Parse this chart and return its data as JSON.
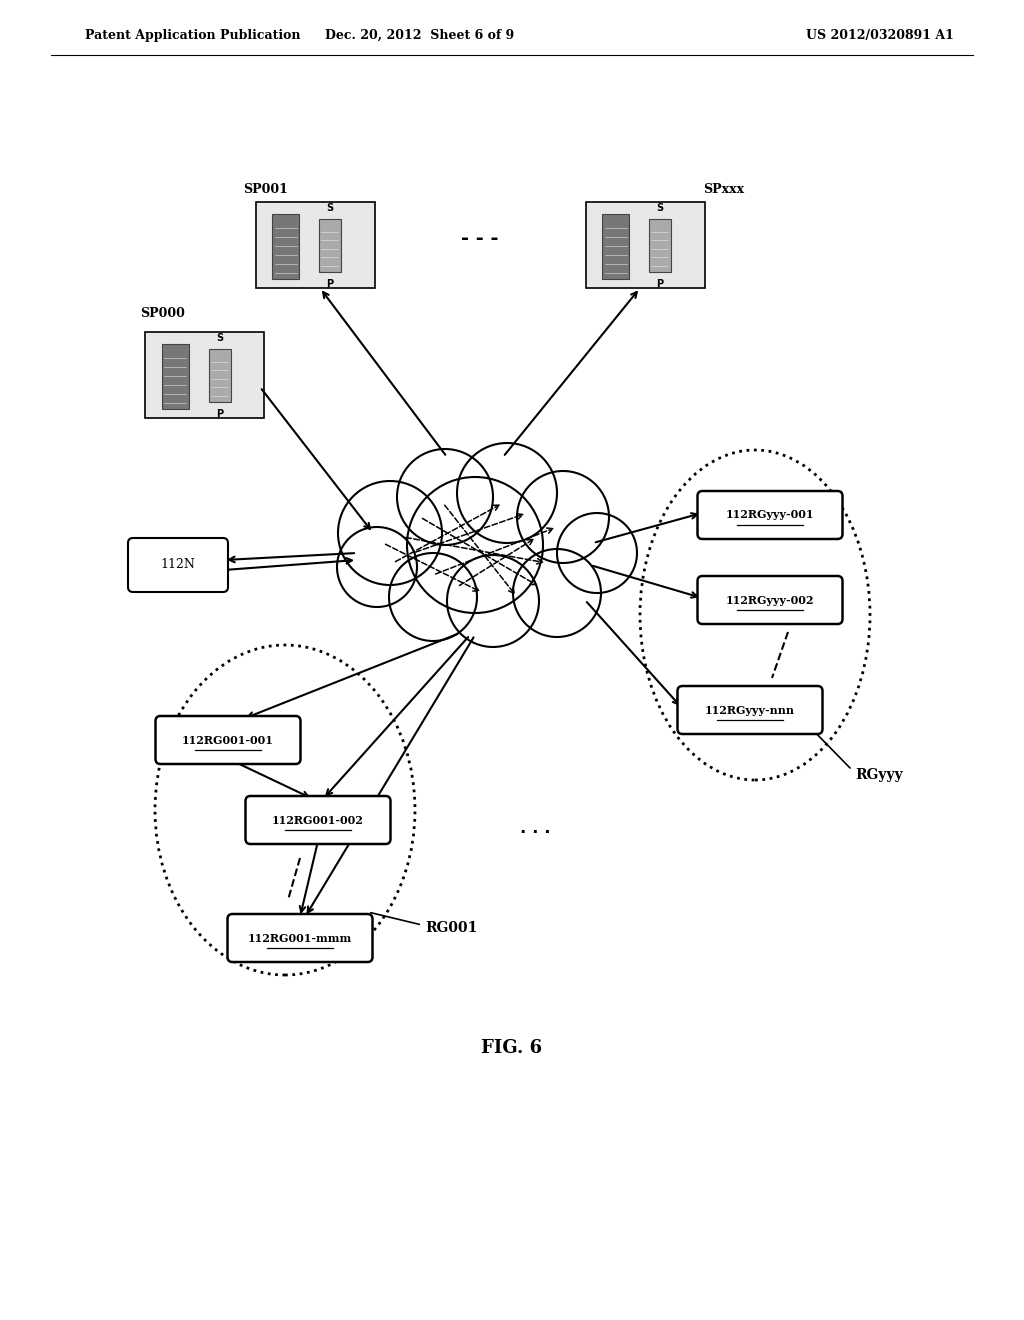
{
  "header_left": "Patent Application Publication",
  "header_mid": "Dec. 20, 2012  Sheet 6 of 9",
  "header_right": "US 2012/0320891 A1",
  "fig_label": "FIG. 6",
  "bg_color": "#ffffff",
  "text_color": "#000000",
  "sp001_label": "SP001",
  "sp000_label": "SP000",
  "spxxx_label": "SPxxx",
  "node_112N": "112N",
  "node_rg001_001": "112RG001-001",
  "node_rg001_002": "112RG001-002",
  "node_rg001_mmm": "112RG001-mmm",
  "node_rgyyy_001": "112RGyyy-001",
  "node_rgyyy_002": "112RGyyy-002",
  "node_rgyyy_nnn": "112RGyyy-nnn",
  "label_rg001": "RG001",
  "label_rgyyy": "RGyyy"
}
